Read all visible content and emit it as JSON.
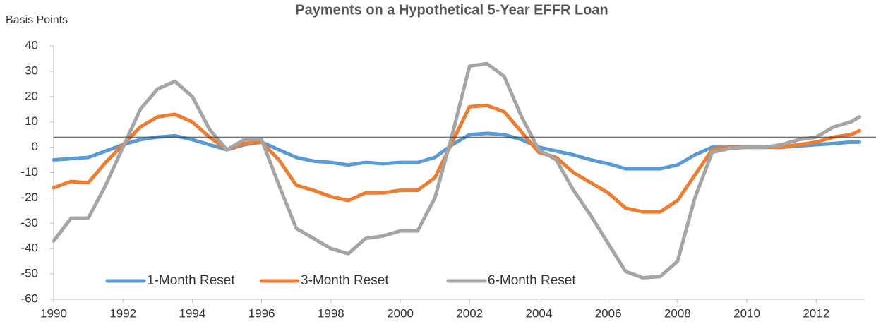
{
  "chart_data": {
    "type": "line",
    "title": "Payments on a Hypothetical 5-Year EFFR Loan",
    "ylabel": "Basis Points",
    "x": [
      1990,
      1990.5,
      1991,
      1991.5,
      1992,
      1992.5,
      1993,
      1993.5,
      1994,
      1994.5,
      1995,
      1995.5,
      1996,
      1996.5,
      1997,
      1997.5,
      1998,
      1998.5,
      1999,
      1999.5,
      2000,
      2000.5,
      2001,
      2001.5,
      2002,
      2002.5,
      2003,
      2003.5,
      2004,
      2004.5,
      2005,
      2005.5,
      2006,
      2006.5,
      2007,
      2007.5,
      2008,
      2008.5,
      2009,
      2009.5,
      2010,
      2010.5,
      2011,
      2011.5,
      2012,
      2012.5,
      2013,
      2013.25
    ],
    "series": [
      {
        "name": "1-Month Reset",
        "color": "#5b9bd5",
        "values": [
          -5,
          -4.5,
          -4,
          -1.5,
          1,
          3,
          4,
          4.5,
          3,
          1,
          -1,
          1,
          2,
          -1,
          -4,
          -5.5,
          -6,
          -7,
          -6,
          -6.5,
          -6,
          -6,
          -4,
          1,
          5,
          5.5,
          5,
          3,
          0,
          -1.5,
          -3,
          -5,
          -6.5,
          -8.5,
          -8.5,
          -8.5,
          -7,
          -3,
          0,
          0,
          0,
          0,
          0,
          0.5,
          1,
          1.5,
          2,
          2
        ]
      },
      {
        "name": "3-Month Reset",
        "color": "#ed7d31",
        "values": [
          -16,
          -13.5,
          -14,
          -6,
          1,
          8,
          12,
          13,
          10,
          4,
          -1,
          1.5,
          2,
          -5,
          -15,
          -17,
          -19.5,
          -21,
          -18,
          -18,
          -17,
          -17,
          -12,
          2,
          16,
          16.5,
          14,
          6,
          -2,
          -4,
          -10,
          -14,
          -18,
          -24,
          -25.5,
          -25.5,
          -21,
          -11,
          -1,
          0,
          0,
          0,
          0,
          1,
          2,
          4,
          5,
          6.5
        ]
      },
      {
        "name": "6-Month Reset",
        "color": "#a5a5a5",
        "values": [
          -37,
          -28,
          -28,
          -15,
          0,
          15,
          23,
          26,
          20,
          7,
          -1,
          3,
          3,
          -15,
          -32,
          -36,
          -40,
          -42,
          -36,
          -35,
          -33,
          -33,
          -20,
          5,
          32,
          33,
          28,
          12,
          -1,
          -5,
          -17,
          -27,
          -38,
          -49,
          -51.5,
          -51,
          -45,
          -20,
          -2,
          -0.5,
          0,
          0,
          1,
          3,
          4,
          8,
          10,
          12
        ]
      }
    ],
    "reference_line": 4,
    "xlim": [
      1990,
      2013.4
    ],
    "xticks": [
      1990,
      1992,
      1994,
      1996,
      1998,
      2000,
      2002,
      2004,
      2006,
      2008,
      2010,
      2012
    ],
    "ylim": [
      -60,
      40
    ],
    "yticks": [
      -60,
      -50,
      -40,
      -30,
      -20,
      -10,
      0,
      10,
      20,
      30,
      40
    ]
  }
}
